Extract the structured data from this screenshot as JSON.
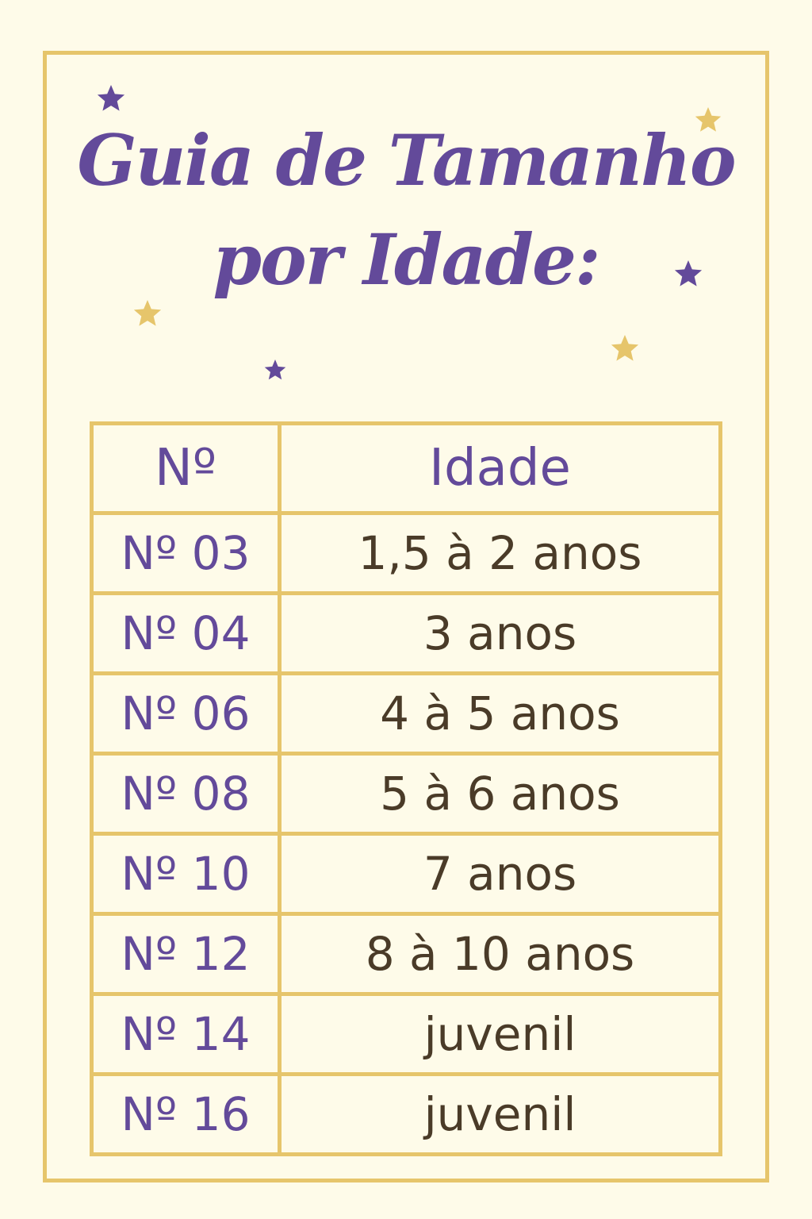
{
  "title": {
    "line1": "Guia de Tamanho",
    "line2": "por Idade:"
  },
  "colors": {
    "background": "#fefbe9",
    "border": "#e6c56b",
    "purple": "#634a9a",
    "text": "#4a3b28"
  },
  "decorations": {
    "icon": "star-icon"
  },
  "table": {
    "headers": [
      "Nº",
      "Idade"
    ],
    "rows": [
      {
        "num": "Nº 03",
        "age": "1,5 à 2 anos"
      },
      {
        "num": "Nº 04",
        "age": "3 anos"
      },
      {
        "num": "Nº 06",
        "age": "4 à 5 anos"
      },
      {
        "num": "Nº 08",
        "age": "5 à 6 anos"
      },
      {
        "num": "Nº 10",
        "age": "7 anos"
      },
      {
        "num": "Nº 12",
        "age": "8 à 10 anos"
      },
      {
        "num": "Nº 14",
        "age": "juvenil"
      },
      {
        "num": "Nº 16",
        "age": "juvenil"
      }
    ]
  }
}
